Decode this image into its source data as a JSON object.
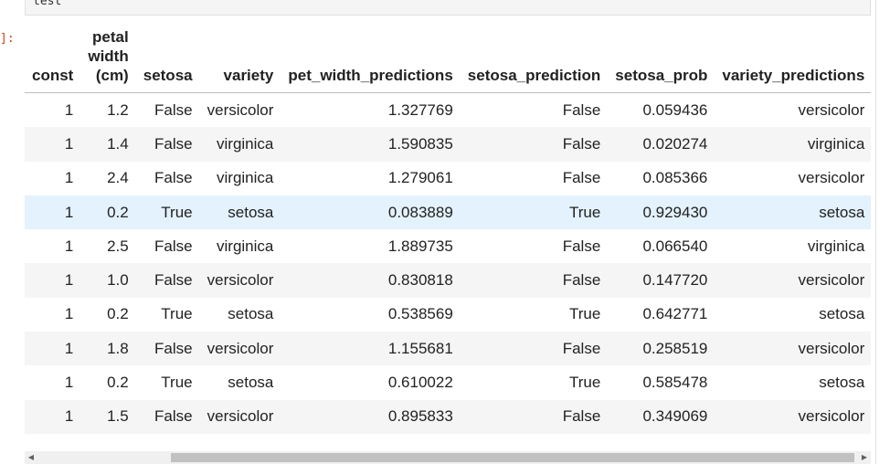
{
  "input_cell": {
    "code": "test"
  },
  "output_prompt": "]:",
  "table": {
    "headers": {
      "const": "const",
      "petal_width_line1": "petal",
      "petal_width_line2": "width",
      "petal_width_line3": "(cm)",
      "setosa": "setosa",
      "variety": "variety",
      "pet_width_predictions": "pet_width_predictions",
      "setosa_prediction": "setosa_prediction",
      "setosa_prob": "setosa_prob",
      "variety_predictions": "variety_predictions"
    },
    "rows": [
      [
        "1",
        "1.2",
        "False",
        "versicolor",
        "1.327769",
        "False",
        "0.059436",
        "versicolor"
      ],
      [
        "1",
        "1.4",
        "False",
        "virginica",
        "1.590835",
        "False",
        "0.020274",
        "virginica"
      ],
      [
        "1",
        "2.4",
        "False",
        "virginica",
        "1.279061",
        "False",
        "0.085366",
        "versicolor"
      ],
      [
        "1",
        "0.2",
        "True",
        "setosa",
        "0.083889",
        "True",
        "0.929430",
        "setosa"
      ],
      [
        "1",
        "2.5",
        "False",
        "virginica",
        "1.889735",
        "False",
        "0.066540",
        "virginica"
      ],
      [
        "1",
        "1.0",
        "False",
        "versicolor",
        "0.830818",
        "False",
        "0.147720",
        "versicolor"
      ],
      [
        "1",
        "0.2",
        "True",
        "setosa",
        "0.538569",
        "True",
        "0.642771",
        "setosa"
      ],
      [
        "1",
        "1.8",
        "False",
        "versicolor",
        "1.155681",
        "False",
        "0.258519",
        "versicolor"
      ],
      [
        "1",
        "0.2",
        "True",
        "setosa",
        "0.610022",
        "True",
        "0.585478",
        "setosa"
      ],
      [
        "1",
        "1.5",
        "False",
        "versicolor",
        "0.895833",
        "False",
        "0.349069",
        "versicolor"
      ]
    ],
    "hovered_row_index": 3
  },
  "scrollbar": {
    "left_arrow_icon": "triangle-left-icon",
    "right_arrow_icon": "triangle-right-icon"
  }
}
